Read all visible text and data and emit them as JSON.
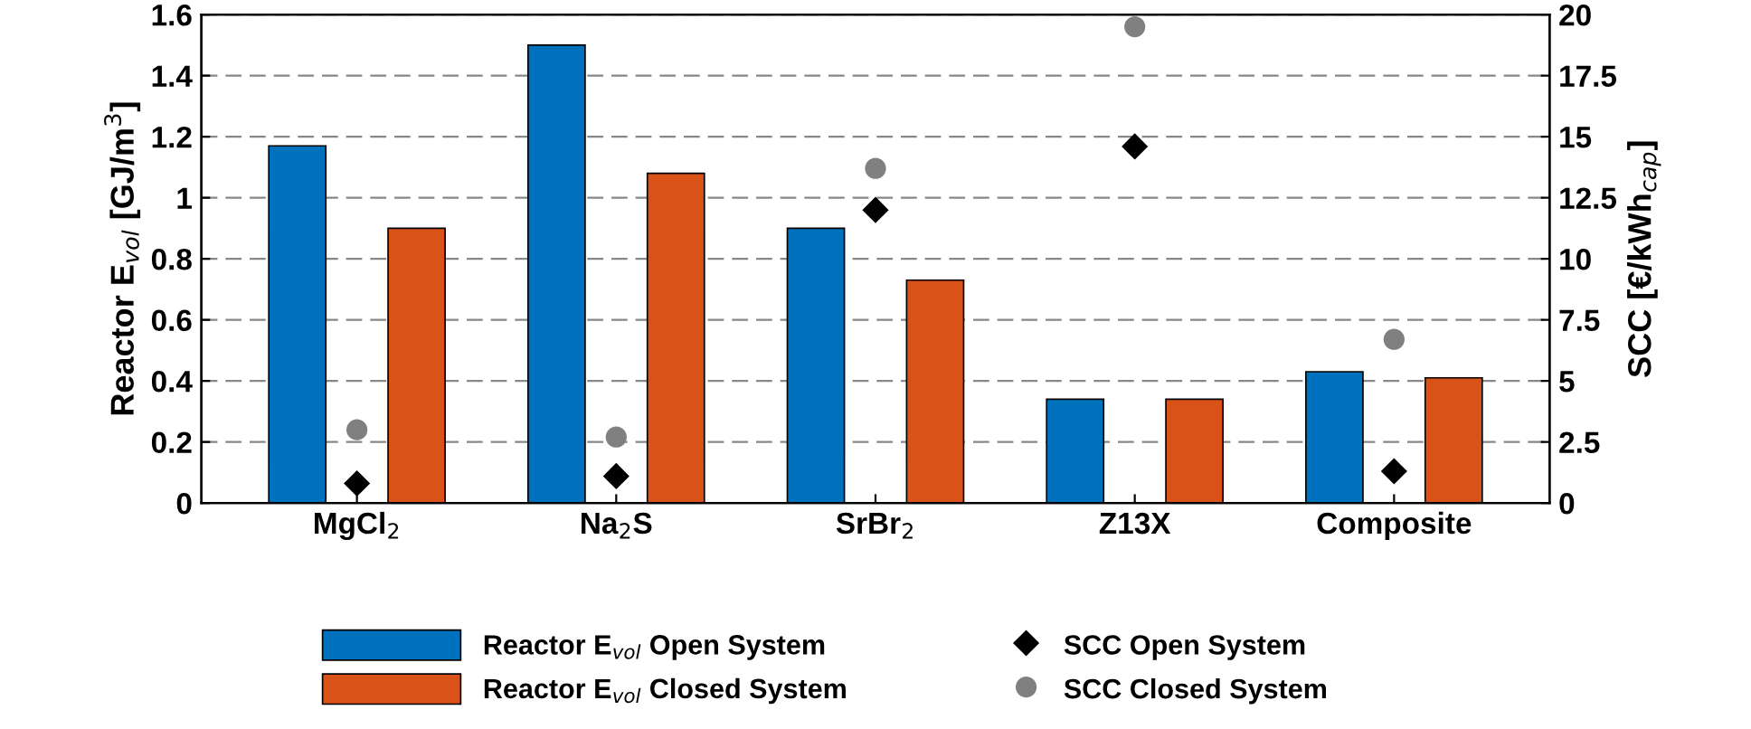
{
  "chart_data": {
    "type": "bar",
    "categories": [
      "MgCl$_{2}$",
      "Na$_{2}$S",
      "SrBr$_{2}$",
      "Z13X",
      "Composite"
    ],
    "ylabel": "Reactor E$_{vol}$ [GJ/m$^{3}$]",
    "y2label": "SCC [€/kWh$_{cap}$]",
    "ylim": [
      0,
      1.6
    ],
    "yticks": [
      0,
      0.2,
      0.4,
      0.6,
      0.8,
      1,
      1.2,
      1.4,
      1.6
    ],
    "y2lim": [
      0,
      20
    ],
    "y2ticks": [
      0,
      2.5,
      5,
      7.5,
      10,
      12.5,
      15,
      17.5,
      20
    ],
    "grid": "y",
    "legend": "bottom",
    "series": [
      {
        "name": "Reactor E$_{vol}$ Open System",
        "color": "#0072bd",
        "values": [
          1.17,
          1.5,
          0.9,
          0.34,
          0.43
        ]
      },
      {
        "name": "Reactor E$_{vol}$ Closed System",
        "color": "#d95319",
        "values": [
          0.9,
          1.08,
          0.73,
          0.34,
          0.41
        ]
      },
      {
        "name": "SCC Open System",
        "type": "scatter",
        "axis": "y2",
        "marker": "diamond",
        "color": "#000000",
        "values": [
          0.8,
          1.1,
          12.0,
          14.6,
          1.3
        ]
      },
      {
        "name": "SCC Closed System",
        "type": "scatter",
        "axis": "y2",
        "marker": "circle",
        "color": "#808080",
        "values": [
          3.0,
          2.7,
          13.7,
          19.5,
          6.7
        ]
      }
    ]
  }
}
